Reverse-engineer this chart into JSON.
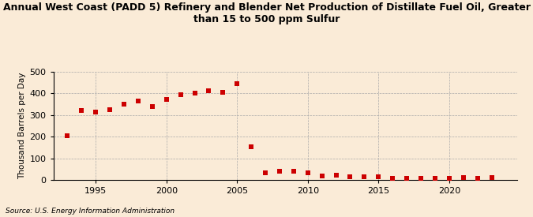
{
  "title_line1": "Annual West Coast (PADD 5) Refinery and Blender Net Production of Distillate Fuel Oil, Greater",
  "title_line2": "than 15 to 500 ppm Sulfur",
  "ylabel": "Thousand Barrels per Day",
  "source": "Source: U.S. Energy Information Administration",
  "background_color": "#faebd7",
  "marker_color": "#cc0000",
  "years": [
    1993,
    1994,
    1995,
    1996,
    1997,
    1998,
    1999,
    2000,
    2001,
    2002,
    2003,
    2004,
    2005,
    2006,
    2007,
    2008,
    2009,
    2010,
    2011,
    2012,
    2013,
    2014,
    2015,
    2016,
    2017,
    2018,
    2019,
    2020,
    2021,
    2022,
    2023
  ],
  "values": [
    205,
    320,
    312,
    325,
    350,
    365,
    340,
    370,
    395,
    400,
    413,
    405,
    445,
    155,
    32,
    40,
    40,
    33,
    20,
    22,
    14,
    15,
    14,
    7,
    8,
    8,
    9,
    9,
    12,
    10,
    12
  ],
  "ylim": [
    0,
    500
  ],
  "yticks": [
    0,
    100,
    200,
    300,
    400,
    500
  ],
  "xlim": [
    1992.0,
    2024.8
  ],
  "xticks": [
    1995,
    2000,
    2005,
    2010,
    2015,
    2020
  ],
  "title_fontsize": 9.0,
  "ylabel_fontsize": 7.5,
  "tick_fontsize": 8.0,
  "source_fontsize": 6.5,
  "marker_size": 14
}
